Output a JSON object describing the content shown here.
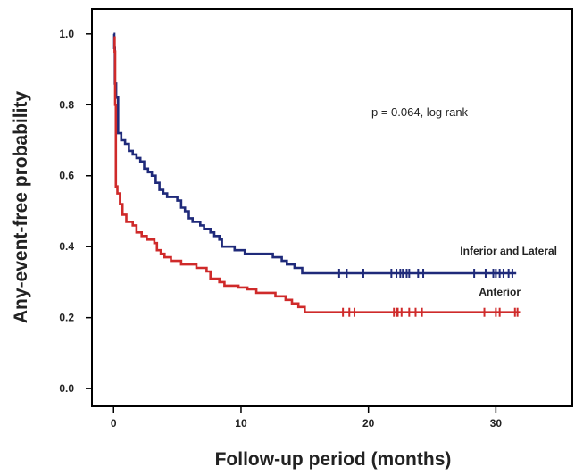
{
  "chart_data": {
    "type": "line",
    "xlabel": "Follow-up period (months)",
    "ylabel": "Any-event-free probability",
    "xlim": [
      -1.7,
      36
    ],
    "ylim": [
      -0.05,
      1.07
    ],
    "xticks": [
      0,
      10,
      20,
      30
    ],
    "yticks": [
      0.0,
      0.2,
      0.4,
      0.6,
      0.8,
      1.0
    ],
    "xtick_labels": [
      "0",
      "10",
      "20",
      "30"
    ],
    "ytick_labels": [
      "0.0",
      "0.2",
      "0.4",
      "0.6",
      "0.8",
      "1.0"
    ],
    "annotation": "p = 0.064, log rank",
    "grid": false,
    "step": true,
    "series": [
      {
        "name": "Inferior and Lateral",
        "color": "#1f2a7a",
        "points": [
          [
            0,
            1.0
          ],
          [
            0.05,
            0.96
          ],
          [
            0.1,
            0.86
          ],
          [
            0.2,
            0.82
          ],
          [
            0.35,
            0.72
          ],
          [
            0.6,
            0.7
          ],
          [
            0.9,
            0.69
          ],
          [
            1.2,
            0.67
          ],
          [
            1.5,
            0.66
          ],
          [
            1.8,
            0.65
          ],
          [
            2.1,
            0.64
          ],
          [
            2.4,
            0.62
          ],
          [
            2.7,
            0.61
          ],
          [
            3.0,
            0.6
          ],
          [
            3.3,
            0.58
          ],
          [
            3.6,
            0.56
          ],
          [
            3.9,
            0.55
          ],
          [
            4.2,
            0.54
          ],
          [
            5.0,
            0.53
          ],
          [
            5.3,
            0.51
          ],
          [
            5.6,
            0.5
          ],
          [
            5.9,
            0.48
          ],
          [
            6.2,
            0.47
          ],
          [
            6.8,
            0.46
          ],
          [
            7.1,
            0.45
          ],
          [
            7.6,
            0.44
          ],
          [
            7.9,
            0.43
          ],
          [
            8.3,
            0.42
          ],
          [
            8.5,
            0.4
          ],
          [
            9.0,
            0.4
          ],
          [
            9.5,
            0.39
          ],
          [
            10.3,
            0.38
          ],
          [
            12.5,
            0.37
          ],
          [
            13.2,
            0.36
          ],
          [
            13.6,
            0.35
          ],
          [
            14.2,
            0.34
          ],
          [
            14.8,
            0.325
          ],
          [
            31.6,
            0.325
          ]
        ],
        "censored": [
          17.7,
          18.3,
          19.6,
          21.8,
          22.2,
          22.5,
          22.7,
          23.0,
          23.2,
          23.9,
          24.3,
          28.3,
          29.2,
          29.8,
          30.0,
          30.3,
          30.6,
          31.0,
          31.3
        ]
      },
      {
        "name": "Anterior",
        "color": "#cf2a2a",
        "points": [
          [
            0,
            0.99
          ],
          [
            0.08,
            0.95
          ],
          [
            0.12,
            0.8
          ],
          [
            0.18,
            0.57
          ],
          [
            0.3,
            0.55
          ],
          [
            0.5,
            0.52
          ],
          [
            0.7,
            0.49
          ],
          [
            1.0,
            0.47
          ],
          [
            1.5,
            0.46
          ],
          [
            1.8,
            0.44
          ],
          [
            2.2,
            0.43
          ],
          [
            2.6,
            0.42
          ],
          [
            3.2,
            0.41
          ],
          [
            3.4,
            0.39
          ],
          [
            3.7,
            0.38
          ],
          [
            4.0,
            0.37
          ],
          [
            4.5,
            0.36
          ],
          [
            5.3,
            0.35
          ],
          [
            6.5,
            0.34
          ],
          [
            7.3,
            0.33
          ],
          [
            7.6,
            0.31
          ],
          [
            8.3,
            0.3
          ],
          [
            8.7,
            0.29
          ],
          [
            9.8,
            0.285
          ],
          [
            10.5,
            0.28
          ],
          [
            11.2,
            0.27
          ],
          [
            12.7,
            0.26
          ],
          [
            13.5,
            0.25
          ],
          [
            14.0,
            0.24
          ],
          [
            14.5,
            0.23
          ],
          [
            15.0,
            0.215
          ],
          [
            31.9,
            0.215
          ]
        ],
        "censored": [
          18.0,
          18.5,
          18.9,
          22.0,
          22.2,
          22.3,
          22.6,
          23.2,
          23.7,
          24.2,
          29.1,
          30.0,
          30.3,
          31.5,
          31.7
        ]
      }
    ],
    "legend": [
      {
        "label": "Inferior and Lateral",
        "color": "#1f2a7a"
      },
      {
        "label": "Anterior",
        "color": "#cf2a2a"
      }
    ]
  }
}
